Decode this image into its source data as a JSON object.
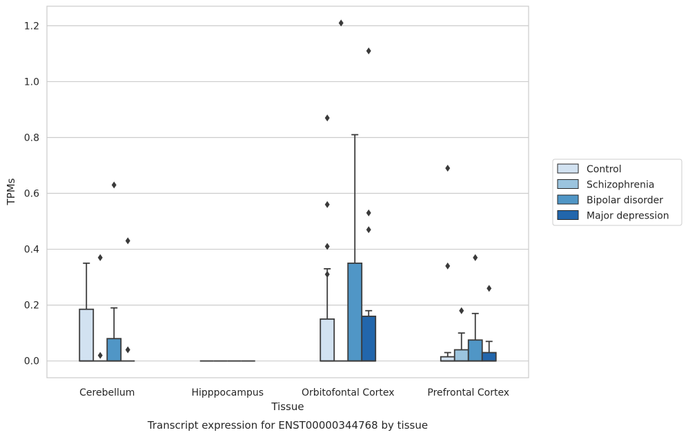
{
  "chart_data": {
    "type": "boxplot",
    "caption": "Transcript expression for ENST00000344768 by tissue",
    "xlabel": "Tissue",
    "ylabel": "TPMs",
    "ylim": [
      -0.06,
      1.27
    ],
    "yticks": [
      0.0,
      0.2,
      0.4,
      0.6,
      0.8,
      1.0,
      1.2
    ],
    "ytick_labels": [
      "0.0",
      "0.2",
      "0.4",
      "0.6",
      "0.8",
      "1.0",
      "1.2"
    ],
    "grid": "horizontal",
    "legend_position": "right-outside",
    "categories": [
      "Cerebellum",
      "Hipppocampus",
      "Orbitofontal Cortex",
      "Prefrontal Cortex"
    ],
    "series": [
      {
        "name": "Control",
        "color": "#d2e2f1",
        "boxes": [
          {
            "q1": 0.0,
            "median": 0.0,
            "q3": 0.185,
            "whisker_low": 0.0,
            "whisker_high": 0.35,
            "outliers": []
          },
          {
            "q1": 0.0,
            "median": 0.0,
            "q3": 0.0,
            "whisker_low": 0.0,
            "whisker_high": 0.0,
            "outliers": []
          },
          {
            "q1": 0.0,
            "median": 0.0,
            "q3": 0.15,
            "whisker_low": 0.0,
            "whisker_high": 0.33,
            "outliers": [
              0.87,
              0.56,
              0.41,
              0.31
            ]
          },
          {
            "q1": 0.0,
            "median": 0.0,
            "q3": 0.015,
            "whisker_low": 0.0,
            "whisker_high": 0.03,
            "outliers": [
              0.69,
              0.34
            ]
          }
        ]
      },
      {
        "name": "Schizophrenia",
        "color": "#9bc4de",
        "boxes": [
          {
            "q1": 0.0,
            "median": 0.0,
            "q3": 0.0,
            "whisker_low": 0.0,
            "whisker_high": 0.0,
            "outliers": [
              0.37,
              0.02
            ]
          },
          {
            "q1": 0.0,
            "median": 0.0,
            "q3": 0.0,
            "whisker_low": 0.0,
            "whisker_high": 0.0,
            "outliers": []
          },
          {
            "q1": 0.0,
            "median": 0.0,
            "q3": 0.0,
            "whisker_low": 0.0,
            "whisker_high": 0.0,
            "outliers": [
              1.21
            ]
          },
          {
            "q1": 0.0,
            "median": 0.0,
            "q3": 0.04,
            "whisker_low": 0.0,
            "whisker_high": 0.1,
            "outliers": [
              0.18
            ]
          }
        ]
      },
      {
        "name": "Bipolar disorder",
        "color": "#5096c6",
        "boxes": [
          {
            "q1": 0.0,
            "median": 0.0,
            "q3": 0.08,
            "whisker_low": 0.0,
            "whisker_high": 0.19,
            "outliers": [
              0.63
            ]
          },
          {
            "q1": 0.0,
            "median": 0.0,
            "q3": 0.0,
            "whisker_low": 0.0,
            "whisker_high": 0.0,
            "outliers": []
          },
          {
            "q1": 0.0,
            "median": 0.0,
            "q3": 0.35,
            "whisker_low": 0.0,
            "whisker_high": 0.81,
            "outliers": []
          },
          {
            "q1": 0.0,
            "median": 0.0,
            "q3": 0.075,
            "whisker_low": 0.0,
            "whisker_high": 0.17,
            "outliers": [
              0.37
            ]
          }
        ]
      },
      {
        "name": "Major depression",
        "color": "#2266ac",
        "boxes": [
          {
            "q1": 0.0,
            "median": 0.0,
            "q3": 0.0,
            "whisker_low": 0.0,
            "whisker_high": 0.0,
            "outliers": [
              0.43,
              0.04
            ]
          },
          {
            "q1": 0.0,
            "median": 0.0,
            "q3": 0.0,
            "whisker_low": 0.0,
            "whisker_high": 0.0,
            "outliers": []
          },
          {
            "q1": 0.0,
            "median": 0.0,
            "q3": 0.16,
            "whisker_low": 0.0,
            "whisker_high": 0.18,
            "outliers": [
              1.11,
              0.53,
              0.47
            ]
          },
          {
            "q1": 0.0,
            "median": 0.0,
            "q3": 0.03,
            "whisker_low": 0.0,
            "whisker_high": 0.07,
            "outliers": [
              0.26
            ]
          }
        ]
      }
    ]
  }
}
